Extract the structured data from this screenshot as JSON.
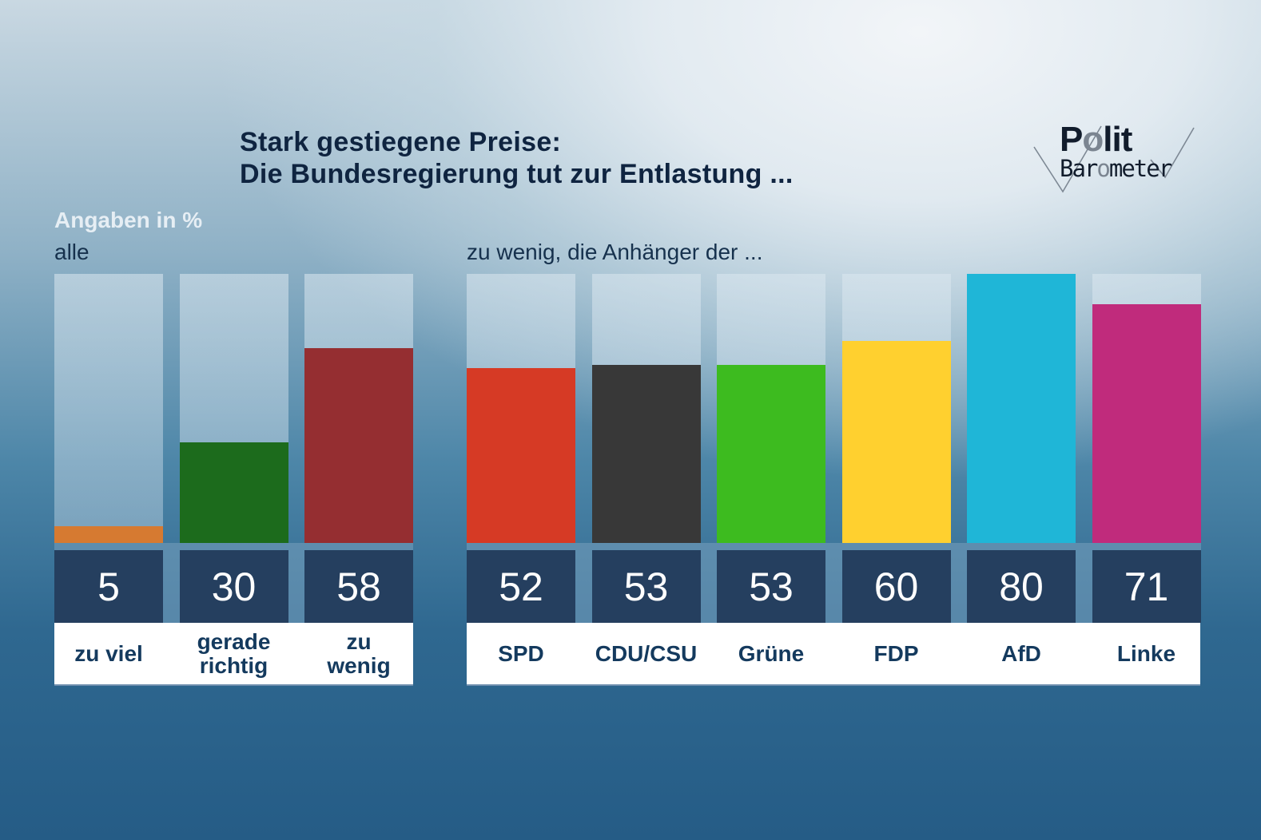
{
  "header": {
    "title_line1": "Stark gestiegene Preise:",
    "title_line2": "Die Bundesregierung tut zur Entlastung ...",
    "logo_polit_prefix": "P",
    "logo_polit_o": "o",
    "logo_polit_suffix": "lit",
    "logo_baro_prefix": "Bar",
    "logo_baro_o": "o",
    "logo_baro_suffix": "meter",
    "logo_icon": "checkmark-icon"
  },
  "chart_data": [
    {
      "type": "bar",
      "title": "Stark gestiegene Preise: Die Bundesregierung tut zur Entlastung ...",
      "subtitle": "alle",
      "ylabel": "Angaben in %",
      "ylim": [
        0,
        80
      ],
      "grid": false,
      "categories": [
        "zu viel",
        "gerade richtig",
        "zu wenig"
      ],
      "category_lines": [
        [
          "zu viel"
        ],
        [
          "gerade",
          "richtig"
        ],
        [
          "zu",
          "wenig"
        ]
      ],
      "values": [
        5,
        30,
        58
      ],
      "colors": [
        "#d67a31",
        "#1c6b1c",
        "#952e31"
      ]
    },
    {
      "type": "bar",
      "subtitle": "zu wenig, die Anhänger der ...",
      "ylim": [
        0,
        80
      ],
      "grid": false,
      "categories": [
        "SPD",
        "CDU/CSU",
        "Grüne",
        "FDP",
        "AfD",
        "Linke"
      ],
      "values": [
        52,
        53,
        53,
        60,
        80,
        71
      ],
      "colors": [
        "#d63a25",
        "#383838",
        "#3dbb1f",
        "#ffd02f",
        "#1fb6d7",
        "#c02b7c"
      ]
    }
  ],
  "units_label": "Angaben in %"
}
